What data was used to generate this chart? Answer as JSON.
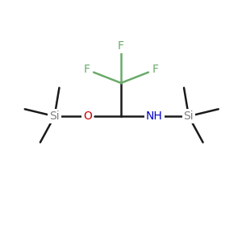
{
  "background_color": "#ffffff",
  "bond_color": "#1a1a1a",
  "F_color": "#6aaa6a",
  "O_color": "#cc0000",
  "N_color": "#0000cc",
  "Si_color": "#808080",
  "line_width": 1.8,
  "font_size": 10,
  "figsize": [
    3.0,
    3.0
  ],
  "dpi": 100,
  "xlim": [
    0,
    10
  ],
  "ylim": [
    0,
    10
  ]
}
